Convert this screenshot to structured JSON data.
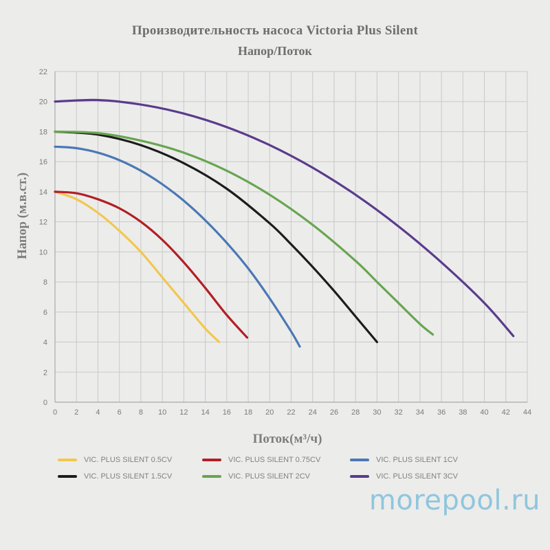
{
  "chart_data": {
    "type": "line",
    "title": "Производительность насоса  Victoria Plus Silent",
    "subtitle": "Напор/Поток",
    "xlabel": "Поток(м³/ч)",
    "ylabel": "Напор (м.в.ст.)",
    "xlim": [
      0,
      44
    ],
    "ylim": [
      0,
      22
    ],
    "xticks": [
      "0",
      "2",
      "4",
      "6",
      "8",
      "10",
      "12",
      "14",
      "16",
      "18",
      "20",
      "22",
      "24",
      "26",
      "28",
      "30",
      "32",
      "34",
      "36",
      "38",
      "40",
      "42",
      "44"
    ],
    "yticks": [
      "0",
      "2",
      "4",
      "6",
      "8",
      "10",
      "12",
      "14",
      "16",
      "18",
      "20",
      "22"
    ],
    "grid": true,
    "legend_position": "bottom",
    "series": [
      {
        "name": "VIC. PLUS SILENT 0.5CV",
        "color": "#f2c74e",
        "x": [
          0,
          2,
          4,
          6,
          8,
          10,
          12,
          14,
          15.3
        ],
        "y": [
          14.0,
          13.5,
          12.6,
          11.4,
          10.0,
          8.3,
          6.6,
          4.9,
          4.0
        ]
      },
      {
        "name": "VIC. PLUS SILENT 0.75CV",
        "color": "#b21f24",
        "x": [
          0,
          2,
          4,
          6,
          8,
          10,
          12,
          14,
          16,
          17.9
        ],
        "y": [
          14.0,
          13.9,
          13.5,
          12.9,
          12.0,
          10.8,
          9.3,
          7.6,
          5.8,
          4.3
        ]
      },
      {
        "name": "VIC. PLUS SILENT 1CV",
        "color": "#4a78b5",
        "x": [
          0,
          2,
          4,
          6,
          8,
          10,
          12,
          14,
          16,
          18,
          20,
          22,
          22.8
        ],
        "y": [
          17.0,
          16.9,
          16.6,
          16.1,
          15.4,
          14.5,
          13.4,
          12.1,
          10.6,
          8.9,
          6.9,
          4.7,
          3.7
        ]
      },
      {
        "name": "VIC. PLUS SILENT 1.5CV",
        "color": "#1c1c1c",
        "x": [
          0,
          4,
          8,
          12,
          16,
          20,
          22,
          24,
          26,
          28,
          30
        ],
        "y": [
          18.0,
          17.8,
          17.1,
          15.9,
          14.2,
          11.9,
          10.5,
          9.0,
          7.4,
          5.7,
          4.0
        ]
      },
      {
        "name": "VIC. PLUS SILENT 2CV",
        "color": "#68a54f",
        "x": [
          0,
          4,
          8,
          12,
          16,
          20,
          24,
          28,
          30,
          32,
          34,
          35.2
        ],
        "y": [
          18.0,
          17.9,
          17.4,
          16.6,
          15.4,
          13.8,
          11.8,
          9.4,
          8.0,
          6.6,
          5.2,
          4.5
        ]
      },
      {
        "name": "VIC. PLUS SILENT 3CV",
        "color": "#5a3b8c",
        "x": [
          0,
          4,
          8,
          12,
          16,
          20,
          24,
          28,
          32,
          36,
          40,
          42.7
        ],
        "y": [
          20.0,
          20.1,
          19.8,
          19.2,
          18.3,
          17.1,
          15.6,
          13.8,
          11.7,
          9.3,
          6.6,
          4.4
        ]
      }
    ]
  },
  "watermark": "morepool.ru"
}
